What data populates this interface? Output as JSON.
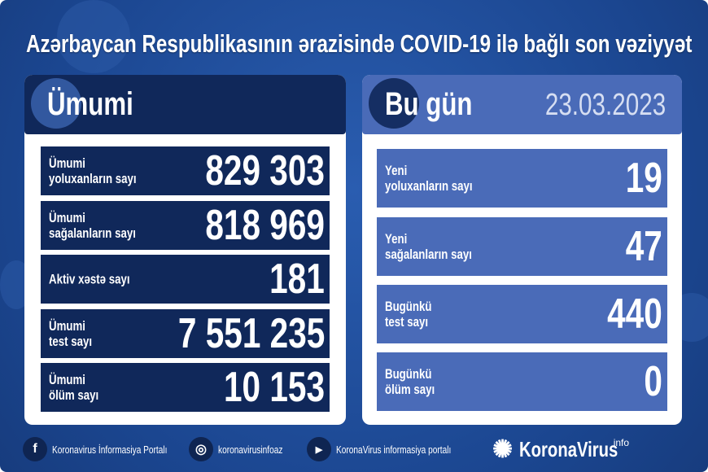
{
  "title": "Azərbaycan Respublikasının ərazisində COVID-19 ilə bağlı son vəziyyət",
  "left": {
    "heading": "Ümumi",
    "rows": [
      {
        "label1": "Ümumi",
        "label2": "yoluxanların sayı",
        "value": "829 303"
      },
      {
        "label1": "Ümumi",
        "label2": "sağalanların sayı",
        "value": "818 969"
      },
      {
        "label1": "Aktiv xəstə sayı",
        "label2": "",
        "value": "181"
      },
      {
        "label1": "Ümumi",
        "label2": "test sayı",
        "value": "7 551 235"
      },
      {
        "label1": "Ümumi",
        "label2": "ölüm sayı",
        "value": "10 153"
      }
    ]
  },
  "right": {
    "heading": "Bu gün",
    "date": "23.03.2023",
    "rows": [
      {
        "label1": "Yeni",
        "label2": "yoluxanların sayı",
        "value": "19"
      },
      {
        "label1": "Yeni",
        "label2": "sağalanların sayı",
        "value": "47"
      },
      {
        "label1": "Bugünkü",
        "label2": "test sayı",
        "value": "440"
      },
      {
        "label1": "Bugünkü",
        "label2": "ölüm sayı",
        "value": "0"
      }
    ]
  },
  "footer": {
    "facebook": "Koronavirus İnformasiya Portalı",
    "instagram": "koronavirusinfoaz",
    "youtube": "KoronaVirus informasiya portalı",
    "logo": "KoronaVirus",
    "logo_sup": "info"
  },
  "colors": {
    "background": "#1d4c98",
    "navy": "#10285a",
    "today_blue": "#4a6bb8"
  }
}
